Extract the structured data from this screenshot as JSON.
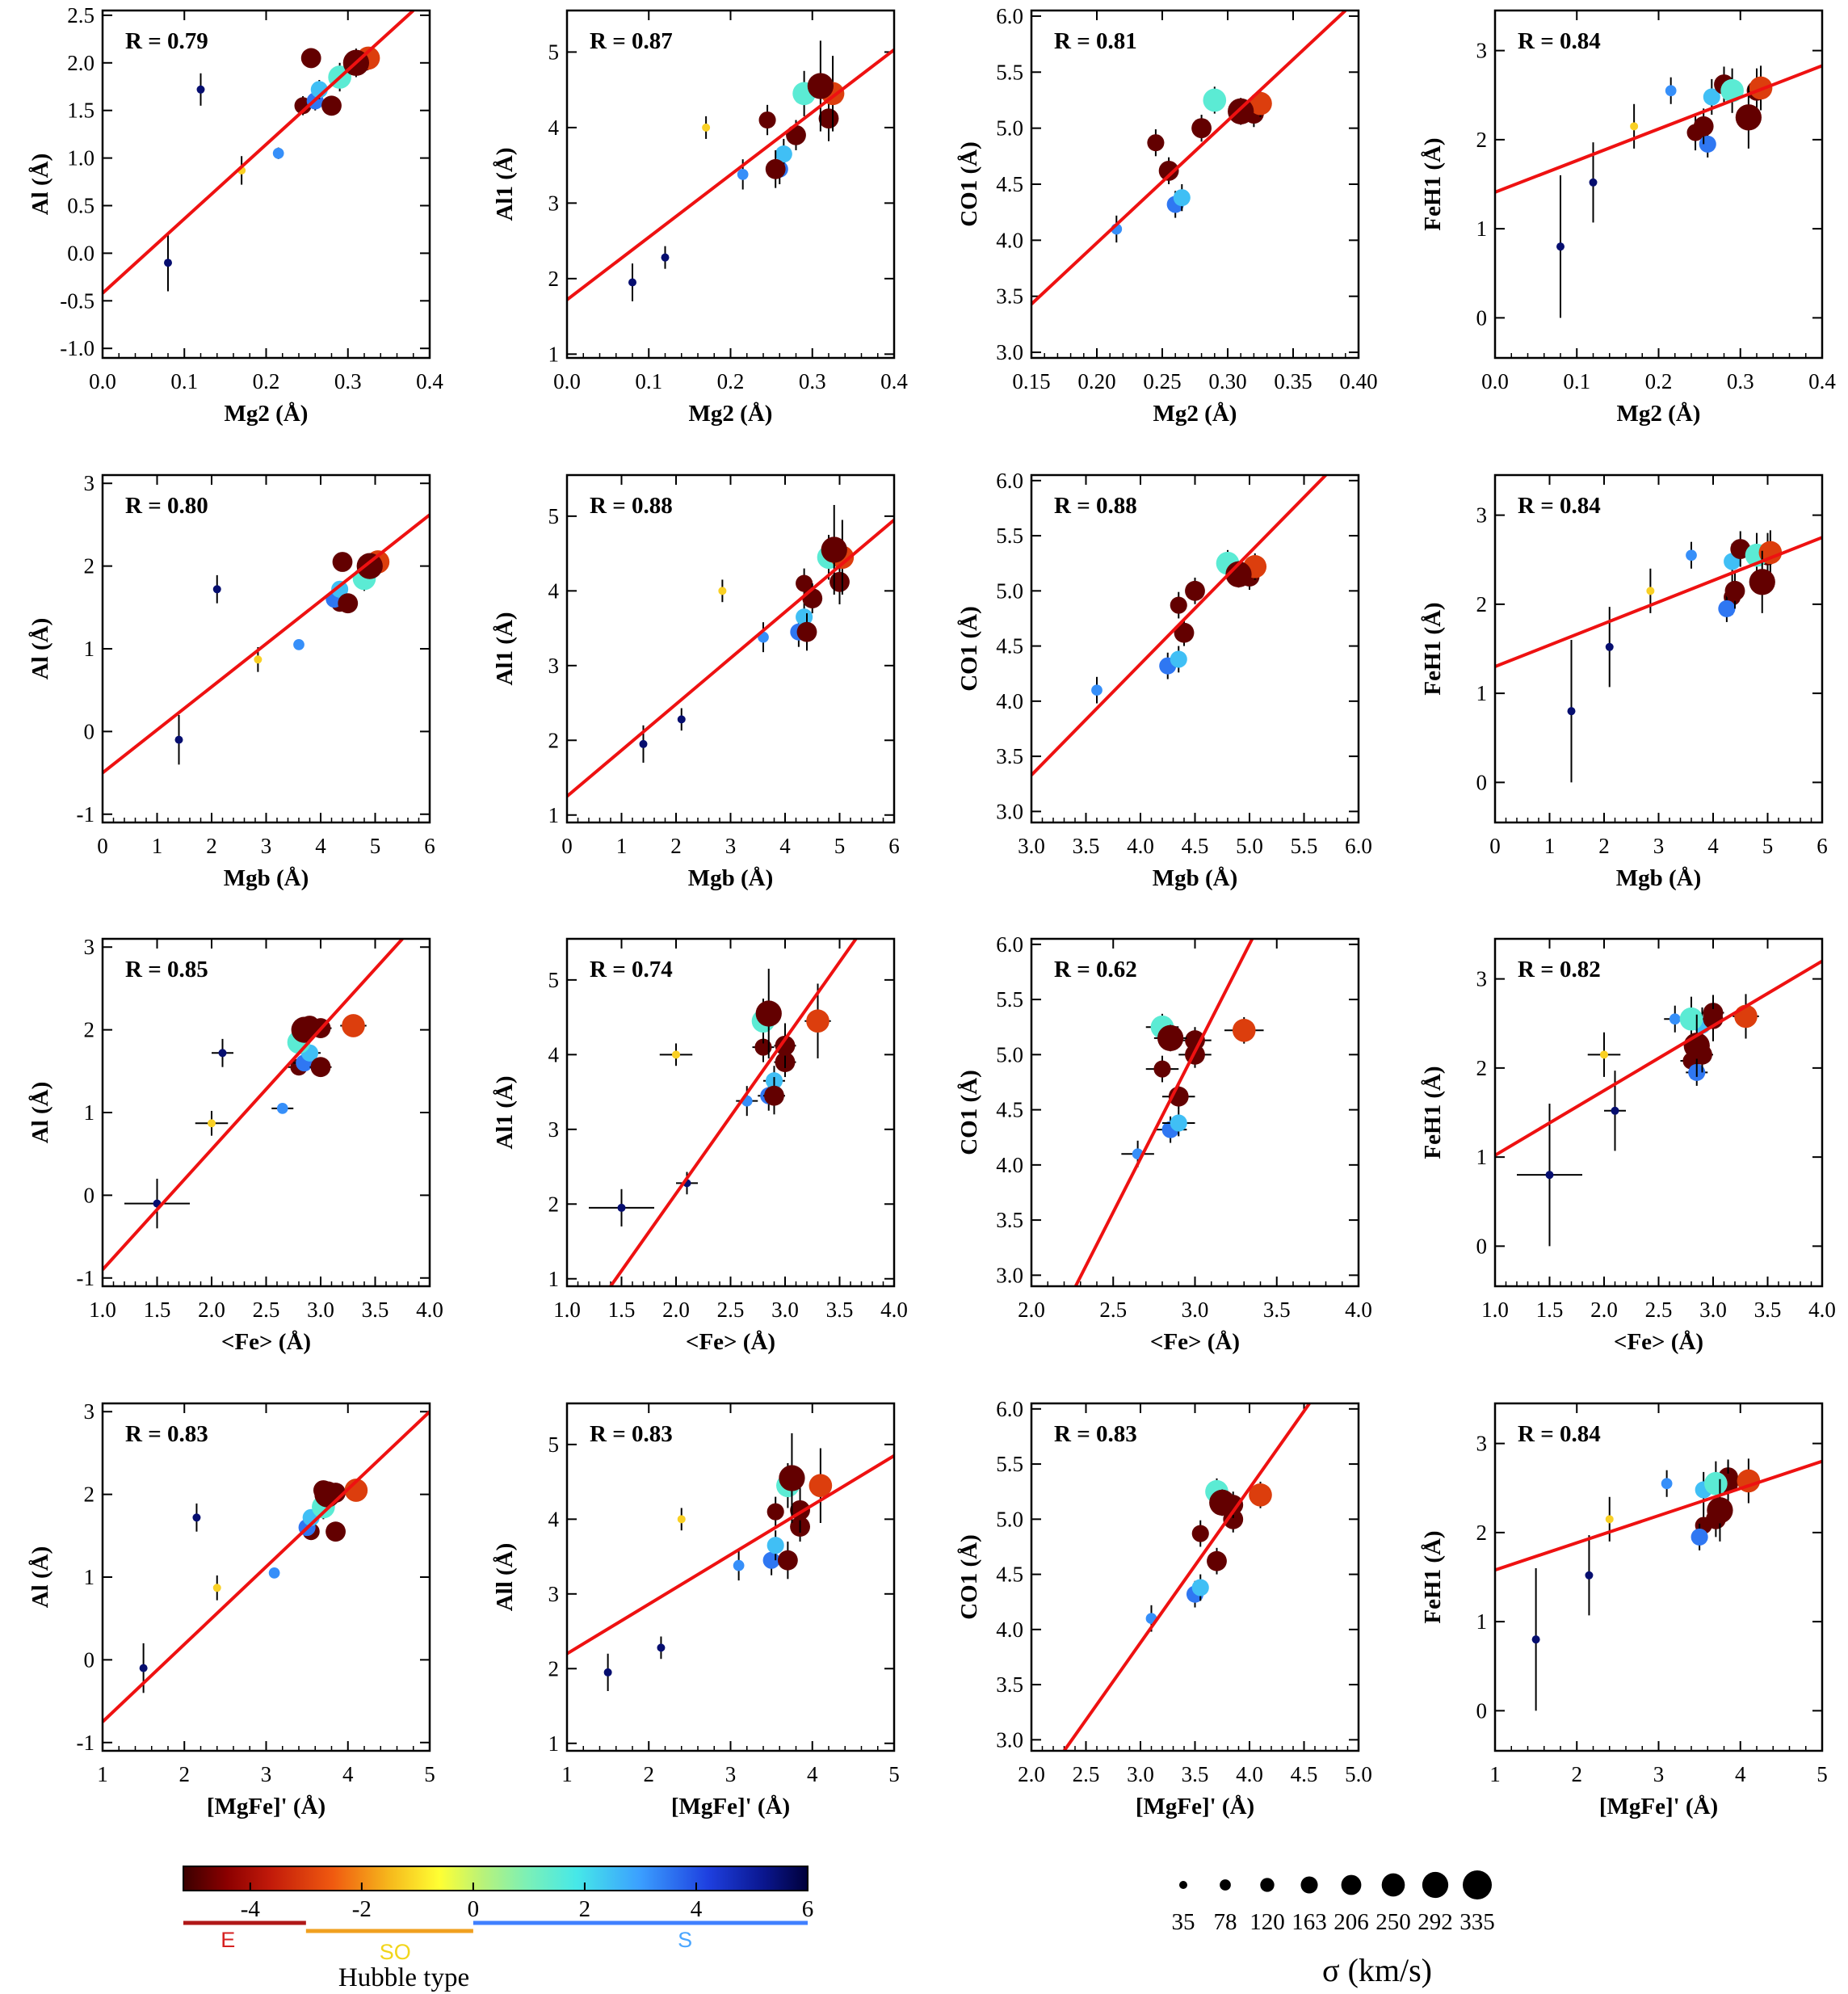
{
  "chart_data": {
    "type": "scatter",
    "description_note": "4x4 grid of scatter plots with linear fits; point color encodes Hubble type, point size encodes velocity dispersion sigma",
    "rows": [
      {
        "xlabel": "Mg2 (Å)",
        "xkey": "mg2"
      },
      {
        "xlabel": "Mgb (Å)",
        "xkey": "mgb"
      },
      {
        "xlabel": "<Fe> (Å)",
        "xkey": "fe"
      },
      {
        "xlabel": "[MgFe]' (Å)",
        "xkey": "mgfe"
      }
    ],
    "columns": [
      {
        "ykey": "al",
        "ylabels": [
          "Al (Å)",
          "Al (Å)",
          "Al (Å)",
          "Al (Å)"
        ]
      },
      {
        "ykey": "al1",
        "ylabels": [
          "Al1 (Å)",
          "Al1 (Å)",
          "Al1 (Å)",
          "All (Å)"
        ]
      },
      {
        "ykey": "co1",
        "ylabels": [
          "CO1 (Å)",
          "CO1 (Å)",
          "CO1 (Å)",
          "CO1 (Å)"
        ]
      },
      {
        "ykey": "feh1",
        "ylabels": [
          "FeH1 (Å)",
          "FeH1 (Å)",
          "FeH1 (Å)",
          "FeH1 (Å)"
        ]
      }
    ],
    "panels": [
      {
        "row": 0,
        "col": 0,
        "R": "R = 0.79",
        "xlim": [
          0,
          0.4
        ],
        "ylim": [
          -1.1,
          2.55
        ],
        "xticks": [
          "0.0",
          "0.1",
          "0.2",
          "0.3",
          "0.4"
        ],
        "xtickvals": [
          0,
          0.1,
          0.2,
          0.3,
          0.4
        ],
        "yticks": [
          "-1.0",
          "-0.5",
          "0.0",
          "0.5",
          "1.0",
          "1.5",
          "2.0",
          "2.5"
        ],
        "ytickvals": [
          -1,
          -0.5,
          0,
          0.5,
          1,
          1.5,
          2,
          2.5
        ],
        "fit": [
          [
            0,
            -0.42
          ],
          [
            0.38,
            2.55
          ]
        ]
      },
      {
        "row": 0,
        "col": 1,
        "R": "R = 0.87",
        "xlim": [
          0,
          0.4
        ],
        "ylim": [
          0.95,
          5.55
        ],
        "xticks": [
          "0.0",
          "0.1",
          "0.2",
          "0.3",
          "0.4"
        ],
        "xtickvals": [
          0,
          0.1,
          0.2,
          0.3,
          0.4
        ],
        "yticks": [
          "1",
          "2",
          "3",
          "4",
          "5"
        ],
        "ytickvals": [
          1,
          2,
          3,
          4,
          5
        ],
        "fit": [
          [
            0,
            1.72
          ],
          [
            0.4,
            5.03
          ]
        ]
      },
      {
        "row": 0,
        "col": 2,
        "R": "R = 0.81",
        "xlim": [
          0.15,
          0.4
        ],
        "ylim": [
          2.95,
          6.05
        ],
        "xticks": [
          "0.15",
          "0.20",
          "0.25",
          "0.30",
          "0.35",
          "0.40"
        ],
        "xtickvals": [
          0.15,
          0.2,
          0.25,
          0.3,
          0.35,
          0.4
        ],
        "yticks": [
          "3.0",
          "3.5",
          "4.0",
          "4.5",
          "5.0",
          "5.5",
          "6.0"
        ],
        "ytickvals": [
          3,
          3.5,
          4,
          4.5,
          5,
          5.5,
          6
        ],
        "fit": [
          [
            0.15,
            3.43
          ],
          [
            0.39,
            6.05
          ]
        ]
      },
      {
        "row": 0,
        "col": 3,
        "R": "R = 0.84",
        "xlim": [
          0,
          0.4
        ],
        "ylim": [
          -0.45,
          3.45
        ],
        "xticks": [
          "0.0",
          "0.1",
          "0.2",
          "0.3",
          "0.4"
        ],
        "xtickvals": [
          0,
          0.1,
          0.2,
          0.3,
          0.4
        ],
        "yticks": [
          "0",
          "1",
          "2",
          "3"
        ],
        "ytickvals": [
          0,
          1,
          2,
          3
        ],
        "fit": [
          [
            0,
            1.41
          ],
          [
            0.4,
            2.83
          ]
        ]
      },
      {
        "row": 1,
        "col": 0,
        "R": "R = 0.80",
        "xlim": [
          0,
          6
        ],
        "ylim": [
          -1.1,
          3.1
        ],
        "xticks": [
          "0",
          "1",
          "2",
          "3",
          "4",
          "5",
          "6"
        ],
        "xtickvals": [
          0,
          1,
          2,
          3,
          4,
          5,
          6
        ],
        "yticks": [
          "-1",
          "0",
          "1",
          "2",
          "3"
        ],
        "ytickvals": [
          -1,
          0,
          1,
          2,
          3
        ],
        "fit": [
          [
            0,
            -0.5
          ],
          [
            6,
            2.62
          ]
        ]
      },
      {
        "row": 1,
        "col": 1,
        "R": "R = 0.88",
        "xlim": [
          0,
          6
        ],
        "ylim": [
          0.9,
          5.55
        ],
        "xticks": [
          "0",
          "1",
          "2",
          "3",
          "4",
          "5",
          "6"
        ],
        "xtickvals": [
          0,
          1,
          2,
          3,
          4,
          5,
          6
        ],
        "yticks": [
          "1",
          "2",
          "3",
          "4",
          "5"
        ],
        "ytickvals": [
          1,
          2,
          3,
          4,
          5
        ],
        "fit": [
          [
            0,
            1.25
          ],
          [
            6,
            4.95
          ]
        ]
      },
      {
        "row": 1,
        "col": 2,
        "R": "R = 0.88",
        "xlim": [
          3,
          6
        ],
        "ylim": [
          2.9,
          6.05
        ],
        "xticks": [
          "3.0",
          "3.5",
          "4.0",
          "4.5",
          "5.0",
          "5.5",
          "6.0"
        ],
        "xtickvals": [
          3,
          3.5,
          4,
          4.5,
          5,
          5.5,
          6
        ],
        "yticks": [
          "3.0",
          "3.5",
          "4.0",
          "4.5",
          "5.0",
          "5.5",
          "6.0"
        ],
        "ytickvals": [
          3,
          3.5,
          4,
          4.5,
          5,
          5.5,
          6
        ],
        "fit": [
          [
            3,
            3.33
          ],
          [
            5.7,
            6.05
          ]
        ]
      },
      {
        "row": 1,
        "col": 3,
        "R": "R = 0.84",
        "xlim": [
          0,
          6
        ],
        "ylim": [
          -0.45,
          3.45
        ],
        "xticks": [
          "0",
          "1",
          "2",
          "3",
          "4",
          "5",
          "6"
        ],
        "xtickvals": [
          0,
          1,
          2,
          3,
          4,
          5,
          6
        ],
        "yticks": [
          "0",
          "1",
          "2",
          "3"
        ],
        "ytickvals": [
          0,
          1,
          2,
          3
        ],
        "fit": [
          [
            0,
            1.3
          ],
          [
            6,
            2.75
          ]
        ]
      },
      {
        "row": 2,
        "col": 0,
        "R": "R = 0.85",
        "xlim": [
          1,
          4
        ],
        "ylim": [
          -1.1,
          3.1
        ],
        "xticks": [
          "1.0",
          "1.5",
          "2.0",
          "2.5",
          "3.0",
          "3.5",
          "4.0"
        ],
        "xtickvals": [
          1,
          1.5,
          2,
          2.5,
          3,
          3.5,
          4
        ],
        "yticks": [
          "-1",
          "0",
          "1",
          "2",
          "3"
        ],
        "ytickvals": [
          -1,
          0,
          1,
          2,
          3
        ],
        "fit": [
          [
            1,
            -0.9
          ],
          [
            3.75,
            3.1
          ]
        ]
      },
      {
        "row": 2,
        "col": 1,
        "R": "R = 0.74",
        "xlim": [
          1,
          4
        ],
        "ylim": [
          0.9,
          5.55
        ],
        "xticks": [
          "1.0",
          "1.5",
          "2.0",
          "2.5",
          "3.0",
          "3.5",
          "4.0"
        ],
        "xtickvals": [
          1,
          1.5,
          2,
          2.5,
          3,
          3.5,
          4
        ],
        "yticks": [
          "1",
          "2",
          "3",
          "4",
          "5"
        ],
        "ytickvals": [
          1,
          2,
          3,
          4,
          5
        ],
        "fit": [
          [
            1.4,
            0.9
          ],
          [
            3.65,
            5.55
          ]
        ]
      },
      {
        "row": 2,
        "col": 2,
        "R": "R = 0.62",
        "xlim": [
          2,
          4
        ],
        "ylim": [
          2.9,
          6.05
        ],
        "xticks": [
          "2.0",
          "2.5",
          "3.0",
          "3.5",
          "4.0"
        ],
        "xtickvals": [
          2,
          2.5,
          3,
          3.5,
          4
        ],
        "yticks": [
          "3.0",
          "3.5",
          "4.0",
          "4.5",
          "5.0",
          "5.5",
          "6.0"
        ],
        "ytickvals": [
          3,
          3.5,
          4,
          4.5,
          5,
          5.5,
          6
        ],
        "fit": [
          [
            2.27,
            2.9
          ],
          [
            3.35,
            6.05
          ]
        ]
      },
      {
        "row": 2,
        "col": 3,
        "R": "R = 0.82",
        "xlim": [
          1,
          4
        ],
        "ylim": [
          -0.45,
          3.45
        ],
        "xticks": [
          "1.0",
          "1.5",
          "2.0",
          "2.5",
          "3.0",
          "3.5",
          "4.0"
        ],
        "xtickvals": [
          1,
          1.5,
          2,
          2.5,
          3,
          3.5,
          4
        ],
        "yticks": [
          "0",
          "1",
          "2",
          "3"
        ],
        "ytickvals": [
          0,
          1,
          2,
          3
        ],
        "fit": [
          [
            1,
            1.02
          ],
          [
            4,
            3.2
          ]
        ]
      },
      {
        "row": 3,
        "col": 0,
        "R": "R = 0.83",
        "xlim": [
          1,
          5
        ],
        "ylim": [
          -1.1,
          3.1
        ],
        "xticks": [
          "1",
          "2",
          "3",
          "4",
          "5"
        ],
        "xtickvals": [
          1,
          2,
          3,
          4,
          5
        ],
        "yticks": [
          "-1",
          "0",
          "1",
          "2",
          "3"
        ],
        "ytickvals": [
          -1,
          0,
          1,
          2,
          3
        ],
        "fit": [
          [
            1,
            -0.75
          ],
          [
            5,
            3.0
          ]
        ]
      },
      {
        "row": 3,
        "col": 1,
        "R": "R = 0.83",
        "xlim": [
          1,
          5
        ],
        "ylim": [
          0.9,
          5.55
        ],
        "xticks": [
          "1",
          "2",
          "3",
          "4",
          "5"
        ],
        "xtickvals": [
          1,
          2,
          3,
          4,
          5
        ],
        "yticks": [
          "1",
          "2",
          "3",
          "4",
          "5"
        ],
        "ytickvals": [
          1,
          2,
          3,
          4,
          5
        ],
        "fit": [
          [
            1,
            2.2
          ],
          [
            5,
            4.85
          ]
        ]
      },
      {
        "row": 3,
        "col": 2,
        "R": "R = 0.83",
        "xlim": [
          2,
          5
        ],
        "ylim": [
          2.9,
          6.05
        ],
        "xticks": [
          "2.0",
          "2.5",
          "3.0",
          "3.5",
          "4.0",
          "4.5",
          "5.0"
        ],
        "xtickvals": [
          2,
          2.5,
          3,
          3.5,
          4,
          4.5,
          5
        ],
        "yticks": [
          "3.0",
          "3.5",
          "4.0",
          "4.5",
          "5.0",
          "5.5",
          "6.0"
        ],
        "ytickvals": [
          3,
          3.5,
          4,
          4.5,
          5,
          5.5,
          6
        ],
        "fit": [
          [
            2.3,
            2.9
          ],
          [
            4.55,
            6.05
          ]
        ]
      },
      {
        "row": 3,
        "col": 3,
        "R": "R = 0.84",
        "xlim": [
          1,
          5
        ],
        "ylim": [
          -0.45,
          3.45
        ],
        "xticks": [
          "1",
          "2",
          "3",
          "4",
          "5"
        ],
        "xtickvals": [
          1,
          2,
          3,
          4,
          5
        ],
        "yticks": [
          "0",
          "1",
          "2",
          "3"
        ],
        "ytickvals": [
          0,
          1,
          2,
          3
        ],
        "fit": [
          [
            1,
            1.58
          ],
          [
            5,
            2.8
          ]
        ]
      }
    ],
    "galaxies": [
      {
        "t": 5.5,
        "s": 35,
        "mg2": 0.08,
        "mgb": 1.4,
        "fe": 1.5,
        "mgfe": 1.5,
        "al": -0.1,
        "al1": 1.95,
        "co1": null,
        "feh1": 0.8,
        "eal": 0.3,
        "eal1": 0.25,
        "efeh1": 0.8,
        "efe": 0.3
      },
      {
        "t": 5.5,
        "s": 35,
        "mg2": 0.12,
        "mgb": 2.1,
        "fe": 2.1,
        "mgfe": 2.15,
        "al": 1.72,
        "al1": 2.28,
        "co1": null,
        "feh1": 1.52,
        "eal": 0.17,
        "eal1": 0.15,
        "efeh1": 0.45,
        "efe": 0.1
      },
      {
        "t": -1.2,
        "s": 35,
        "mg2": 0.17,
        "mgb": 2.85,
        "fe": 2.0,
        "mgfe": 2.4,
        "al": 0.87,
        "al1": 4.0,
        "co1": null,
        "feh1": 2.15,
        "eal": 0.15,
        "eal1": 0.15,
        "efeh1": 0.25,
        "efe": 0.15
      },
      {
        "t": 3.2,
        "s": 78,
        "mg2": 0.215,
        "mgb": 3.6,
        "fe": 2.65,
        "mgfe": 3.1,
        "al": 1.05,
        "al1": 3.38,
        "co1": 4.1,
        "feh1": 2.55,
        "eal": 0.06,
        "eal1": 0.2,
        "efeh1": 0.15,
        "efe": 0.1
      },
      {
        "t": -4.8,
        "s": 163,
        "mg2": 0.245,
        "mgb": 4.35,
        "fe": 2.8,
        "mgfe": 3.55,
        "al": 1.55,
        "al1": 4.1,
        "co1": 4.87,
        "feh1": 2.08,
        "eal": 0.1,
        "eal1": 0.2,
        "efeh1": 0.2,
        "efe": 0.1
      },
      {
        "t": -4.8,
        "s": 206,
        "mg2": 0.255,
        "mgb": 4.4,
        "fe": 2.9,
        "mgfe": 3.7,
        "al": 2.05,
        "al1": 3.45,
        "co1": 4.62,
        "feh1": 2.15,
        "eal": 0.1,
        "eal1": 0.25,
        "efeh1": 0.2,
        "efe": 0.1
      },
      {
        "t": 3.5,
        "s": 163,
        "mg2": 0.26,
        "mgb": 4.25,
        "fe": 2.85,
        "mgfe": 3.5,
        "al": 1.6,
        "al1": 3.45,
        "co1": 4.32,
        "feh1": 1.95,
        "eal": 0.1,
        "eal1": 0.2,
        "efeh1": 0.15,
        "efe": 0.1
      },
      {
        "t": 2.5,
        "s": 163,
        "mg2": 0.265,
        "mgb": 4.35,
        "fe": 2.9,
        "mgfe": 3.55,
        "al": 1.72,
        "al1": 3.65,
        "co1": 4.38,
        "feh1": 2.48,
        "eal": 0.1,
        "eal1": 0.2,
        "efeh1": 0.2,
        "efe": 0.1
      },
      {
        "t": -4.8,
        "s": 206,
        "mg2": 0.28,
        "mgb": 4.5,
        "fe": 3.0,
        "mgfe": 3.85,
        "al": 1.55,
        "al1": 3.9,
        "co1": 5.0,
        "feh1": 2.62,
        "eal": 0.1,
        "eal1": 0.2,
        "efeh1": 0.2,
        "efe": 0.1
      },
      {
        "t": 1.5,
        "s": 250,
        "mg2": 0.29,
        "mgb": 4.8,
        "fe": 2.8,
        "mgfe": 3.7,
        "al": 1.85,
        "al1": 4.45,
        "co1": 5.25,
        "feh1": 2.55,
        "eal": 0.15,
        "eal1": 0.3,
        "efeh1": 0.25,
        "efe": 0.1
      },
      {
        "t": -4.8,
        "s": 292,
        "mg2": 0.31,
        "mgb": 4.9,
        "fe": 2.85,
        "mgfe": 3.75,
        "al": 2.0,
        "al1": 4.55,
        "co1": 5.15,
        "feh1": 2.25,
        "eal": 0.15,
        "eal1": 0.6,
        "efeh1": 0.35,
        "efe": 0.1
      },
      {
        "t": -4.8,
        "s": 206,
        "mg2": 0.32,
        "mgb": 5.0,
        "fe": 3.0,
        "mgfe": 3.85,
        "al": 2.02,
        "al1": 4.12,
        "co1": 5.13,
        "feh1": 2.55,
        "eal": 0.1,
        "eal1": 0.3,
        "efeh1": 0.25,
        "efe": 0.1
      },
      {
        "t": -3.0,
        "s": 250,
        "mg2": 0.325,
        "mgb": 5.05,
        "fe": 3.3,
        "mgfe": 4.1,
        "al": 2.05,
        "al1": 4.45,
        "co1": 5.22,
        "feh1": 2.58,
        "eal": 0.1,
        "eal1": 0.5,
        "efeh1": 0.25,
        "efe": 0.12
      }
    ],
    "colorbar": {
      "label": "Hubble type",
      "ticks": [
        "-4",
        "-2",
        "0",
        "2",
        "4",
        "6"
      ],
      "tickvals": [
        -4,
        -2,
        0,
        2,
        4,
        6
      ],
      "range": [
        -5.2,
        6
      ],
      "classes": [
        {
          "name": "E",
          "color": "#d62020"
        },
        {
          "name": "SO",
          "color": "#f2d51a"
        },
        {
          "name": "S",
          "color": "#4aa6ff"
        }
      ]
    },
    "sigma_legend": {
      "title": "σ (km/s)",
      "values": [
        "35",
        "78",
        "120",
        "163",
        "206",
        "250",
        "292",
        "335"
      ]
    }
  }
}
